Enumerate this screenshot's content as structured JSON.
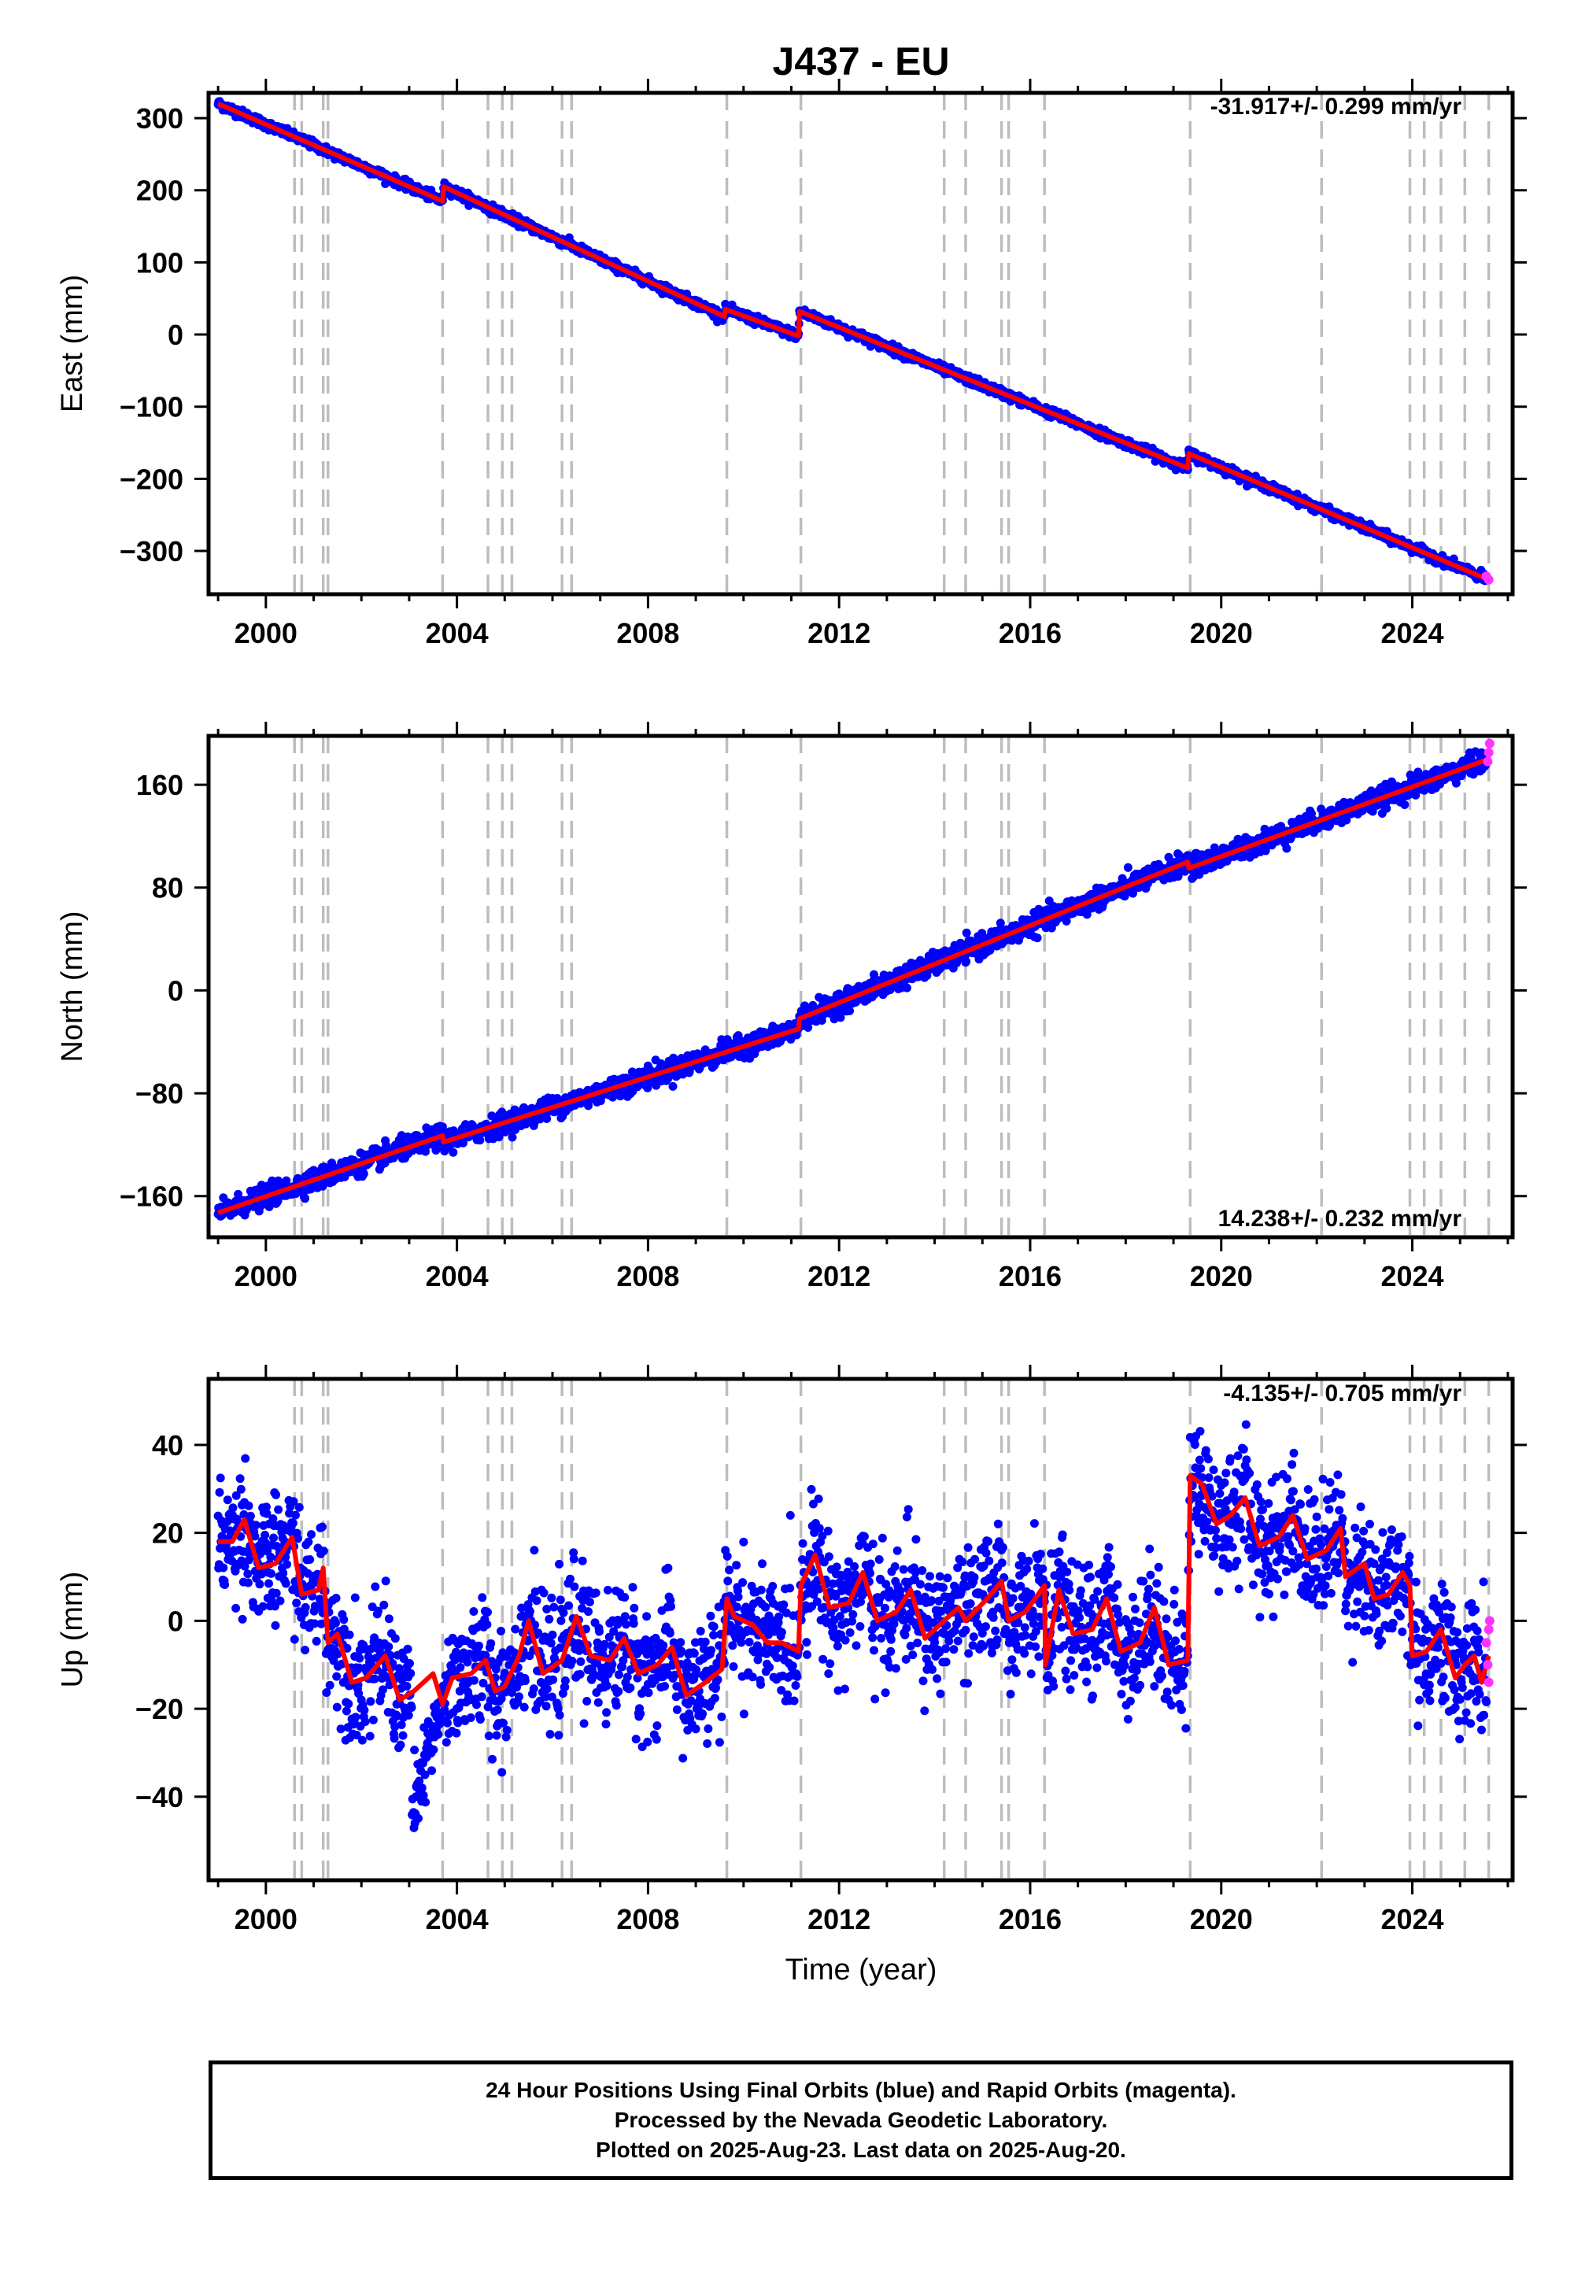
{
  "title": "J437 - EU",
  "xlabel": "Time (year)",
  "footer": {
    "line1": "24 Hour Positions Using Final Orbits (blue) and Rapid Orbits (magenta).",
    "line2": "Processed by the Nevada Geodetic Laboratory.",
    "line3": "Plotted on 2025-Aug-23. Last data on 2025-Aug-20."
  },
  "colors": {
    "final_points": "#0000ff",
    "rapid_points": "#ff33ff",
    "model": "#ff0000",
    "offset_lines": "#bdbdbd"
  },
  "chart_data": [
    {
      "type": "scatter",
      "name": "east",
      "ylabel": "East (mm)",
      "rate_label": "-31.917+/- 0.299 mm/yr",
      "xlim": [
        1998.8,
        2026.1
      ],
      "ylim": [
        -360,
        335
      ],
      "yticks": [
        -300,
        -200,
        -100,
        0,
        100,
        200,
        300
      ],
      "xticks": [
        2000,
        2004,
        2008,
        2012,
        2016,
        2020,
        2024
      ],
      "offset_epochs": [
        2000.6,
        2000.75,
        2001.2,
        2001.3,
        2003.7,
        2004.65,
        2004.95,
        2005.15,
        2006.2,
        2006.4,
        2009.65,
        2011.2,
        2014.2,
        2014.65,
        2015.4,
        2015.55,
        2016.3,
        2019.35,
        2022.1,
        2023.95,
        2024.25,
        2024.6,
        2025.1,
        2025.6
      ],
      "model": [
        [
          1999.0,
          320
        ],
        [
          2003.7,
          185
        ],
        [
          2003.72,
          205
        ],
        [
          2009.6,
          25
        ],
        [
          2009.62,
          35
        ],
        [
          2011.15,
          -2
        ],
        [
          2011.17,
          32
        ],
        [
          2019.3,
          -185
        ],
        [
          2019.32,
          -165
        ],
        [
          2025.6,
          -340
        ]
      ],
      "scatter": 3,
      "rapid": [
        [
          2025.55,
          -335
        ],
        [
          2025.6,
          -340
        ]
      ]
    },
    {
      "type": "scatter",
      "name": "north",
      "ylabel": "North (mm)",
      "rate_label": "14.238+/- 0.232 mm/yr",
      "xlim": [
        1998.8,
        2026.1
      ],
      "ylim": [
        -192,
        198
      ],
      "yticks": [
        -160,
        -80,
        0,
        80,
        160
      ],
      "xticks": [
        2000,
        2004,
        2008,
        2012,
        2016,
        2020,
        2024
      ],
      "offset_epochs": [
        2000.6,
        2000.75,
        2001.2,
        2001.3,
        2003.7,
        2004.65,
        2004.95,
        2005.15,
        2006.2,
        2006.4,
        2009.65,
        2011.2,
        2014.2,
        2014.65,
        2015.4,
        2015.55,
        2016.3,
        2019.35,
        2022.1,
        2023.95,
        2024.25,
        2024.6,
        2025.1,
        2025.6
      ],
      "model": [
        [
          1999.0,
          -173
        ],
        [
          2003.7,
          -113
        ],
        [
          2003.72,
          -118
        ],
        [
          2011.15,
          -30
        ],
        [
          2011.17,
          -22
        ],
        [
          2019.3,
          100
        ],
        [
          2019.32,
          95
        ],
        [
          2025.6,
          180
        ]
      ],
      "scatter": 4,
      "rapid": [
        [
          2025.58,
          178
        ],
        [
          2025.6,
          185
        ],
        [
          2025.62,
          192
        ]
      ]
    },
    {
      "type": "scatter",
      "name": "up",
      "ylabel": "Up (mm)",
      "rate_label": "-4.135+/- 0.705 mm/yr",
      "xlim": [
        1998.8,
        2026.1
      ],
      "ylim": [
        -59,
        55
      ],
      "yticks": [
        -40,
        -20,
        0,
        20,
        40
      ],
      "xticks": [
        2000,
        2004,
        2008,
        2012,
        2016,
        2020,
        2024
      ],
      "offset_epochs": [
        2000.6,
        2000.75,
        2001.2,
        2001.3,
        2003.7,
        2004.65,
        2004.95,
        2005.15,
        2006.2,
        2006.4,
        2009.65,
        2011.2,
        2014.2,
        2014.65,
        2015.4,
        2015.55,
        2016.3,
        2019.35,
        2022.1,
        2023.95,
        2024.25,
        2024.6,
        2025.1,
        2025.6
      ],
      "model": [
        [
          1999.0,
          18
        ],
        [
          1999.3,
          18
        ],
        [
          1999.55,
          23
        ],
        [
          1999.85,
          12
        ],
        [
          2000.2,
          13
        ],
        [
          2000.55,
          19
        ],
        [
          2000.75,
          6
        ],
        [
          2001.1,
          7
        ],
        [
          2001.2,
          12
        ],
        [
          2001.3,
          -5
        ],
        [
          2001.5,
          -3
        ],
        [
          2001.8,
          -14
        ],
        [
          2002.1,
          -13
        ],
        [
          2002.5,
          -8
        ],
        [
          2002.8,
          -18
        ],
        [
          2003.1,
          -16
        ],
        [
          2003.5,
          -12
        ],
        [
          2003.7,
          -19
        ],
        [
          2003.9,
          -13
        ],
        [
          2004.3,
          -12
        ],
        [
          2004.6,
          -9
        ],
        [
          2004.8,
          -16
        ],
        [
          2005.0,
          -15
        ],
        [
          2005.3,
          -8
        ],
        [
          2005.5,
          0
        ],
        [
          2005.8,
          -12
        ],
        [
          2006.2,
          -9
        ],
        [
          2006.5,
          1
        ],
        [
          2006.8,
          -8
        ],
        [
          2007.2,
          -9
        ],
        [
          2007.5,
          -4
        ],
        [
          2007.8,
          -12
        ],
        [
          2008.2,
          -10
        ],
        [
          2008.5,
          -6
        ],
        [
          2008.8,
          -17
        ],
        [
          2009.2,
          -14
        ],
        [
          2009.55,
          -11
        ],
        [
          2009.65,
          5
        ],
        [
          2009.8,
          1
        ],
        [
          2010.2,
          -1
        ],
        [
          2010.5,
          -5
        ],
        [
          2010.8,
          -5
        ],
        [
          2011.15,
          -7
        ],
        [
          2011.2,
          8
        ],
        [
          2011.5,
          15
        ],
        [
          2011.8,
          3
        ],
        [
          2012.2,
          4
        ],
        [
          2012.5,
          11
        ],
        [
          2012.8,
          0
        ],
        [
          2013.2,
          2
        ],
        [
          2013.5,
          7
        ],
        [
          2013.8,
          -4
        ],
        [
          2014.2,
          0
        ],
        [
          2014.5,
          3
        ],
        [
          2014.65,
          0
        ],
        [
          2015.1,
          5
        ],
        [
          2015.4,
          9
        ],
        [
          2015.55,
          0
        ],
        [
          2015.9,
          2
        ],
        [
          2016.3,
          8
        ],
        [
          2016.32,
          -10
        ],
        [
          2016.6,
          7
        ],
        [
          2016.9,
          -3
        ],
        [
          2017.3,
          -2
        ],
        [
          2017.6,
          5
        ],
        [
          2017.9,
          -7
        ],
        [
          2018.3,
          -5
        ],
        [
          2018.6,
          3
        ],
        [
          2018.9,
          -10
        ],
        [
          2019.3,
          -9
        ],
        [
          2019.35,
          33
        ],
        [
          2019.6,
          31
        ],
        [
          2019.9,
          22
        ],
        [
          2020.2,
          24
        ],
        [
          2020.5,
          28
        ],
        [
          2020.8,
          17
        ],
        [
          2021.2,
          19
        ],
        [
          2021.5,
          24
        ],
        [
          2021.8,
          14
        ],
        [
          2022.2,
          16
        ],
        [
          2022.5,
          21
        ],
        [
          2022.6,
          10
        ],
        [
          2023.0,
          13
        ],
        [
          2023.2,
          5
        ],
        [
          2023.5,
          6
        ],
        [
          2023.8,
          11
        ],
        [
          2023.95,
          8
        ],
        [
          2024.0,
          -8
        ],
        [
          2024.3,
          -7
        ],
        [
          2024.6,
          -2
        ],
        [
          2024.9,
          -13
        ],
        [
          2025.1,
          -10
        ],
        [
          2025.3,
          -8
        ],
        [
          2025.45,
          -14
        ],
        [
          2025.6,
          -8
        ]
      ],
      "scatter": 7,
      "rapid": [
        [
          2025.55,
          -5
        ],
        [
          2025.58,
          -10
        ],
        [
          2025.6,
          -2
        ],
        [
          2025.62,
          0
        ],
        [
          2025.6,
          -14
        ]
      ]
    }
  ]
}
